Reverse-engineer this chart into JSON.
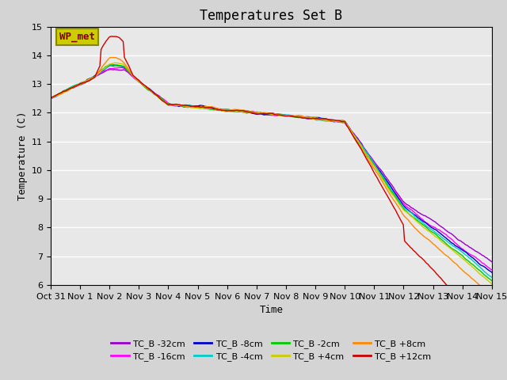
{
  "title": "Temperatures Set B",
  "xlabel": "Time",
  "ylabel": "Temperature (C)",
  "ylim": [
    6.0,
    15.0
  ],
  "yticks": [
    6.0,
    7.0,
    8.0,
    9.0,
    10.0,
    11.0,
    12.0,
    13.0,
    14.0,
    15.0
  ],
  "xlim_days": [
    0,
    15
  ],
  "xtick_labels": [
    "Oct 31",
    "Nov 1",
    "Nov 2",
    "Nov 3",
    "Nov 4",
    "Nov 5",
    "Nov 6",
    "Nov 7",
    "Nov 8",
    "Nov 9",
    "Nov 10",
    "Nov 11",
    "Nov 12",
    "Nov 13",
    "Nov 14",
    "Nov 15"
  ],
  "wp_met_box_color": "#cccc00",
  "wp_met_text_color": "#800000",
  "background_color": "#e0e0e0",
  "axes_bg_color": "#e8e8e8",
  "series": [
    {
      "label": "TC_B -32cm",
      "color": "#9900cc"
    },
    {
      "label": "TC_B -16cm",
      "color": "#ff00ff"
    },
    {
      "label": "TC_B -8cm",
      "color": "#0000cc"
    },
    {
      "label": "TC_B -4cm",
      "color": "#00cccc"
    },
    {
      "label": "TC_B -2cm",
      "color": "#00cc00"
    },
    {
      "label": "TC_B +4cm",
      "color": "#cccc00"
    },
    {
      "label": "TC_B +8cm",
      "color": "#ff8800"
    },
    {
      "label": "TC_B +12cm",
      "color": "#cc0000"
    }
  ],
  "grid_color": "#ffffff",
  "grid_lw": 1.0
}
